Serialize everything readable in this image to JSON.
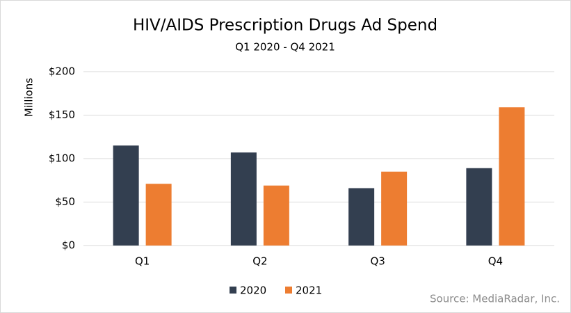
{
  "chart_data": {
    "type": "bar",
    "title": "HIV/AIDS Prescription Drugs Ad Spend",
    "subtitle": "Q1 2020 - Q4 2021",
    "y_label": "Millions",
    "source": "Source: MediaRadar, Inc.",
    "categories": [
      "Q1",
      "Q2",
      "Q3",
      "Q4"
    ],
    "series": [
      {
        "name": "2020",
        "color": "#333f50",
        "values": [
          115,
          107,
          66,
          89
        ]
      },
      {
        "name": "2021",
        "color": "#ed7d31",
        "values": [
          71,
          69,
          85,
          159
        ]
      }
    ],
    "ylim": [
      0,
      200
    ],
    "yticks": [
      {
        "value": 0,
        "label": "$0"
      },
      {
        "value": 50,
        "label": "$50"
      },
      {
        "value": 100,
        "label": "$100"
      },
      {
        "value": 150,
        "label": "$150"
      },
      {
        "value": 200,
        "label": "$200"
      }
    ],
    "grid": true,
    "legend": "bottom"
  }
}
